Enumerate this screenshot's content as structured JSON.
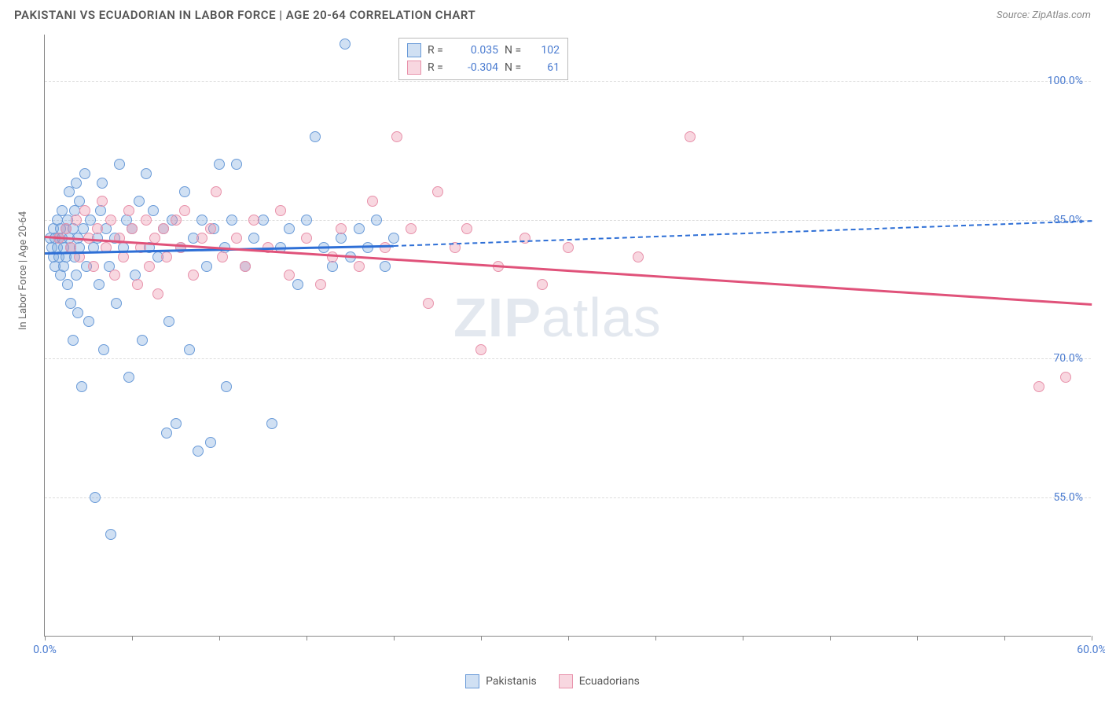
{
  "header": {
    "title": "PAKISTANI VS ECUADORIAN IN LABOR FORCE | AGE 20-64 CORRELATION CHART",
    "source": "Source: ZipAtlas.com"
  },
  "watermark": {
    "bold": "ZIP",
    "light": "atlas"
  },
  "chart": {
    "type": "scatter",
    "y_axis_label": "In Labor Force | Age 20-64",
    "xlim": [
      0,
      60
    ],
    "ylim": [
      40,
      105
    ],
    "y_ticks": [
      55,
      70,
      85,
      100
    ],
    "y_tick_labels": [
      "55.0%",
      "70.0%",
      "85.0%",
      "100.0%"
    ],
    "x_tick_marks": [
      0,
      5,
      10,
      15,
      20,
      25,
      30,
      35,
      40,
      45,
      50,
      55,
      60
    ],
    "x_labels": [
      {
        "v": 0,
        "t": "0.0%"
      },
      {
        "v": 60,
        "t": "60.0%"
      }
    ],
    "grid_color": "#dddddd",
    "axis_color": "#888888",
    "label_color": "#4a7bd0",
    "background_color": "#ffffff",
    "marker_radius": 7,
    "series": [
      {
        "name": "Pakistanis",
        "fill": "rgba(120,165,220,0.35)",
        "stroke": "#6a9bd8",
        "trend_color": "#2e6fd6",
        "R": "0.035",
        "N": "102",
        "trend": {
          "x1": 0,
          "y1": 81.5,
          "x2": 20,
          "y2": 82.3,
          "dash_to_x": 60,
          "dash_to_y": 85.0
        },
        "points": [
          [
            0.3,
            83
          ],
          [
            0.4,
            82
          ],
          [
            0.5,
            84
          ],
          [
            0.5,
            81
          ],
          [
            0.6,
            83
          ],
          [
            0.6,
            80
          ],
          [
            0.7,
            85
          ],
          [
            0.7,
            82
          ],
          [
            0.8,
            83
          ],
          [
            0.8,
            81
          ],
          [
            0.9,
            84
          ],
          [
            0.9,
            79
          ],
          [
            1.0,
            86
          ],
          [
            1.0,
            83
          ],
          [
            1.1,
            82
          ],
          [
            1.1,
            80
          ],
          [
            1.2,
            84
          ],
          [
            1.2,
            81
          ],
          [
            1.3,
            85
          ],
          [
            1.3,
            78
          ],
          [
            1.4,
            88
          ],
          [
            1.4,
            83
          ],
          [
            1.5,
            82
          ],
          [
            1.5,
            76
          ],
          [
            1.6,
            84
          ],
          [
            1.6,
            72
          ],
          [
            1.7,
            86
          ],
          [
            1.7,
            81
          ],
          [
            1.8,
            89
          ],
          [
            1.8,
            79
          ],
          [
            1.9,
            83
          ],
          [
            1.9,
            75
          ],
          [
            2.0,
            87
          ],
          [
            2.0,
            82
          ],
          [
            2.1,
            67
          ],
          [
            2.2,
            84
          ],
          [
            2.3,
            90
          ],
          [
            2.4,
            80
          ],
          [
            2.5,
            74
          ],
          [
            2.6,
            85
          ],
          [
            2.8,
            82
          ],
          [
            2.9,
            55
          ],
          [
            3.0,
            83
          ],
          [
            3.1,
            78
          ],
          [
            3.2,
            86
          ],
          [
            3.3,
            89
          ],
          [
            3.4,
            71
          ],
          [
            3.5,
            84
          ],
          [
            3.7,
            80
          ],
          [
            3.8,
            51
          ],
          [
            4.0,
            83
          ],
          [
            4.1,
            76
          ],
          [
            4.3,
            91
          ],
          [
            4.5,
            82
          ],
          [
            4.7,
            85
          ],
          [
            4.8,
            68
          ],
          [
            5.0,
            84
          ],
          [
            5.2,
            79
          ],
          [
            5.4,
            87
          ],
          [
            5.6,
            72
          ],
          [
            5.8,
            90
          ],
          [
            6.0,
            82
          ],
          [
            6.2,
            86
          ],
          [
            6.5,
            81
          ],
          [
            6.8,
            84
          ],
          [
            7.0,
            62
          ],
          [
            7.1,
            74
          ],
          [
            7.3,
            85
          ],
          [
            7.5,
            63
          ],
          [
            7.8,
            82
          ],
          [
            8.0,
            88
          ],
          [
            8.3,
            71
          ],
          [
            8.5,
            83
          ],
          [
            8.8,
            60
          ],
          [
            9.0,
            85
          ],
          [
            9.3,
            80
          ],
          [
            9.5,
            61
          ],
          [
            9.7,
            84
          ],
          [
            10.0,
            91
          ],
          [
            10.3,
            82
          ],
          [
            10.4,
            67
          ],
          [
            10.7,
            85
          ],
          [
            11.0,
            91
          ],
          [
            11.5,
            80
          ],
          [
            12.0,
            83
          ],
          [
            12.5,
            85
          ],
          [
            13.0,
            63
          ],
          [
            13.5,
            82
          ],
          [
            14.0,
            84
          ],
          [
            14.5,
            78
          ],
          [
            15.0,
            85
          ],
          [
            15.5,
            94
          ],
          [
            16.0,
            82
          ],
          [
            16.5,
            80
          ],
          [
            17.0,
            83
          ],
          [
            17.2,
            104
          ],
          [
            17.5,
            81
          ],
          [
            18.0,
            84
          ],
          [
            18.5,
            82
          ],
          [
            19.0,
            85
          ],
          [
            19.5,
            80
          ],
          [
            20.0,
            83
          ]
        ]
      },
      {
        "name": "Ecuadorians",
        "fill": "rgba(235,140,165,0.35)",
        "stroke": "#e892ab",
        "trend_color": "#e0527a",
        "R": "-0.304",
        "N": "61",
        "trend": {
          "x1": 0,
          "y1": 83.3,
          "x2": 60,
          "y2": 76.0
        },
        "points": [
          [
            0.8,
            83
          ],
          [
            1.2,
            84
          ],
          [
            1.5,
            82
          ],
          [
            1.8,
            85
          ],
          [
            2.0,
            81
          ],
          [
            2.3,
            86
          ],
          [
            2.5,
            83
          ],
          [
            2.8,
            80
          ],
          [
            3.0,
            84
          ],
          [
            3.3,
            87
          ],
          [
            3.5,
            82
          ],
          [
            3.8,
            85
          ],
          [
            4.0,
            79
          ],
          [
            4.3,
            83
          ],
          [
            4.5,
            81
          ],
          [
            4.8,
            86
          ],
          [
            5.0,
            84
          ],
          [
            5.3,
            78
          ],
          [
            5.5,
            82
          ],
          [
            5.8,
            85
          ],
          [
            6.0,
            80
          ],
          [
            6.3,
            83
          ],
          [
            6.5,
            77
          ],
          [
            6.8,
            84
          ],
          [
            7.0,
            81
          ],
          [
            7.5,
            85
          ],
          [
            7.8,
            82
          ],
          [
            8.0,
            86
          ],
          [
            8.5,
            79
          ],
          [
            9.0,
            83
          ],
          [
            9.5,
            84
          ],
          [
            9.8,
            88
          ],
          [
            10.2,
            81
          ],
          [
            11.0,
            83
          ],
          [
            11.5,
            80
          ],
          [
            12.0,
            85
          ],
          [
            12.8,
            82
          ],
          [
            13.5,
            86
          ],
          [
            14.0,
            79
          ],
          [
            15.0,
            83
          ],
          [
            15.8,
            78
          ],
          [
            16.5,
            81
          ],
          [
            17.0,
            84
          ],
          [
            18.0,
            80
          ],
          [
            18.8,
            87
          ],
          [
            19.5,
            82
          ],
          [
            20.2,
            94
          ],
          [
            21.0,
            84
          ],
          [
            22.0,
            76
          ],
          [
            22.5,
            88
          ],
          [
            23.5,
            82
          ],
          [
            24.2,
            84
          ],
          [
            25.0,
            71
          ],
          [
            26.0,
            80
          ],
          [
            27.5,
            83
          ],
          [
            28.5,
            78
          ],
          [
            30.0,
            82
          ],
          [
            34.0,
            81
          ],
          [
            37.0,
            94
          ],
          [
            57.0,
            67
          ],
          [
            58.5,
            68
          ]
        ]
      }
    ]
  },
  "stats_box": {
    "label_R": "R =",
    "label_N": "N ="
  },
  "legend": {
    "items": [
      {
        "label": "Pakistanis",
        "fill": "rgba(120,165,220,0.35)",
        "stroke": "#6a9bd8"
      },
      {
        "label": "Ecuadorians",
        "fill": "rgba(235,140,165,0.35)",
        "stroke": "#e892ab"
      }
    ]
  }
}
